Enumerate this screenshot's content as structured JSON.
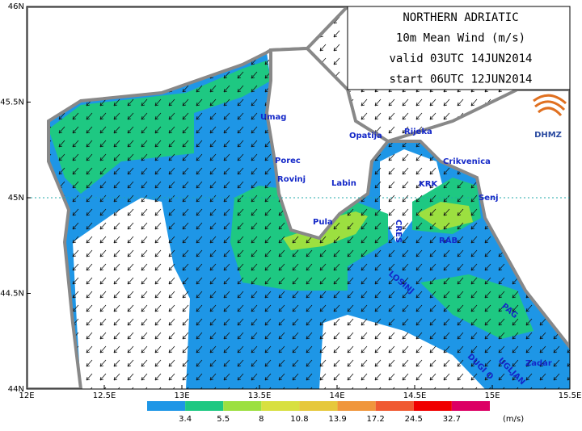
{
  "map": {
    "title_lines": [
      "NORTHERN ADRIATIC",
      "10m Mean Wind (m/s)",
      "valid 03UTC 14JUN2014",
      "start 06UTC 12JUN2014"
    ],
    "logo": "DHMZ",
    "x_ticks": [
      "12E",
      "12.5E",
      "13E",
      "13.5E",
      "14E",
      "14.5E",
      "15E",
      "15.5E"
    ],
    "y_ticks": [
      "46N",
      "45.5N",
      "45N",
      "44.5N",
      "44N"
    ],
    "places": [
      "Umag",
      "Porec",
      "Rovinj",
      "Pula",
      "Labin",
      "Opatija",
      "Rijeka",
      "Crikvenica",
      "KRK",
      "Senj",
      "RAB",
      "CRES",
      "LOSINJ",
      "PAG",
      "Zadar",
      "UGLJAN",
      "DUGI O"
    ],
    "colorbar": {
      "labels": [
        "3.4",
        "5.5",
        "8",
        "10.8",
        "13.9",
        "17.2",
        "24.5",
        "32.7"
      ],
      "colors": [
        "#1e96e6",
        "#1ec882",
        "#9ce040",
        "#d8e040",
        "#e6c83c",
        "#f0963c",
        "#f05a32",
        "#f00000",
        "#dc0064"
      ],
      "unit": "(m/s)"
    }
  }
}
